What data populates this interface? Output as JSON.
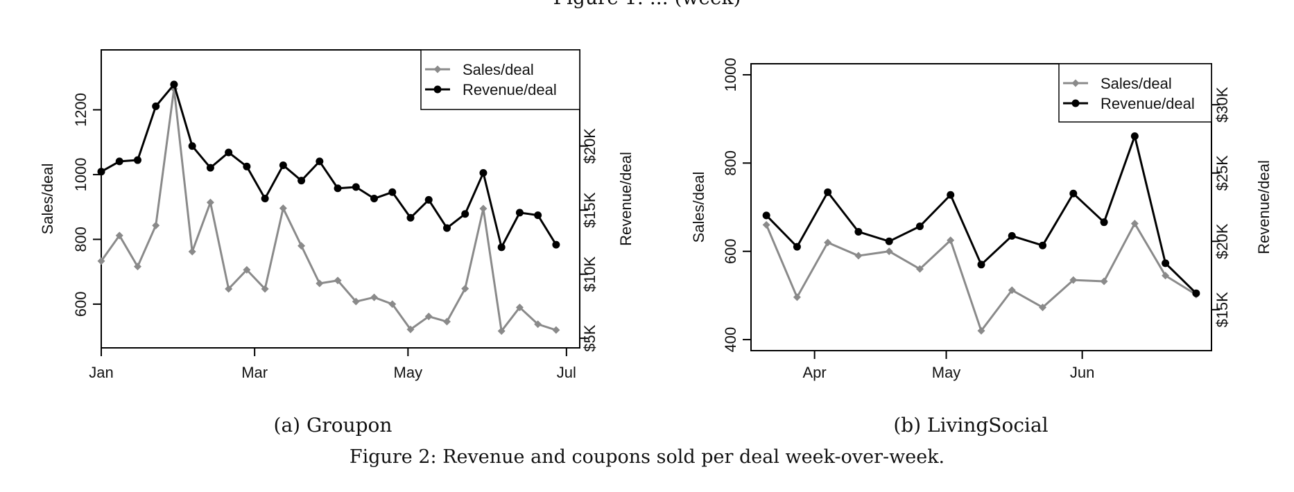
{
  "figure": {
    "top_fragment": "Figure 1: ... (week)",
    "caption_a": "(a) Groupon",
    "caption_b": "(b) LivingSocial",
    "caption": "Figure 2: Revenue and coupons sold per deal week-over-week."
  },
  "colors": {
    "sales": "#8a8a8a",
    "revenue": "#000000",
    "axis": "#000000"
  },
  "chart_data": [
    {
      "type": "line",
      "name": "groupon",
      "title": "",
      "xlabel": "",
      "ylabel": "Sales/deal",
      "y2label": "Revenue/deal",
      "xlim": [
        0,
        26.3
      ],
      "ylim": [
        465,
        1385
      ],
      "y2lim": [
        4250,
        27500
      ],
      "x_ticks": [
        {
          "x": 0,
          "label": "Jan"
        },
        {
          "x": 8.43,
          "label": "Mar"
        },
        {
          "x": 16.86,
          "label": "May"
        },
        {
          "x": 25.57,
          "label": "Jul"
        }
      ],
      "y_ticks": [
        600,
        800,
        1000,
        1200
      ],
      "y2_ticks": [
        {
          "v": 5000,
          "label": "$5K"
        },
        {
          "v": 10000,
          "label": "$10K"
        },
        {
          "v": 15000,
          "label": "$15K"
        },
        {
          "v": 20000,
          "label": "$20K"
        }
      ],
      "legend": {
        "position": "top-right",
        "entries": [
          "Sales/deal",
          "Revenue/deal"
        ]
      },
      "series": [
        {
          "name": "Sales/deal",
          "axis": "left",
          "marker": "diamond",
          "x": [
            0,
            1,
            2,
            3,
            4,
            5,
            6,
            7,
            8,
            9,
            10,
            11,
            12,
            13,
            14,
            15,
            16,
            17,
            18,
            19,
            20,
            21,
            22,
            23,
            24,
            25
          ],
          "values": [
            733,
            812,
            716,
            843,
            1265,
            762,
            914,
            647,
            706,
            647,
            896,
            780,
            664,
            673,
            608,
            621,
            600,
            522,
            562,
            546,
            648,
            895,
            517,
            590,
            538,
            520
          ]
        },
        {
          "name": "Revenue/deal",
          "axis": "right",
          "marker": "circle",
          "x": [
            0,
            1,
            2,
            3,
            4,
            5,
            6,
            7,
            8,
            9,
            10,
            11,
            12,
            13,
            14,
            15,
            16,
            17,
            18,
            19,
            20,
            21,
            22,
            23,
            24,
            25
          ],
          "values": [
            18000,
            18800,
            18900,
            23100,
            24800,
            20000,
            18300,
            19500,
            18400,
            15900,
            18500,
            17300,
            18800,
            16700,
            16800,
            15900,
            16400,
            14400,
            15800,
            13600,
            14700,
            17900,
            12100,
            14800,
            14600,
            12300
          ]
        }
      ]
    },
    {
      "type": "line",
      "name": "livingsocial",
      "title": "",
      "xlabel": "",
      "ylabel": "Sales/deal",
      "y2label": "Revenue/deal",
      "xlim": [
        -0.5,
        14.5
      ],
      "ylim": [
        375,
        1025
      ],
      "y2lim": [
        12000,
        33000
      ],
      "x_ticks": [
        {
          "x": 1.57,
          "label": "Apr"
        },
        {
          "x": 5.86,
          "label": "May"
        },
        {
          "x": 10.29,
          "label": "Jun"
        }
      ],
      "y_ticks": [
        400,
        600,
        800,
        1000
      ],
      "y2_ticks": [
        {
          "v": 15000,
          "label": "$15K"
        },
        {
          "v": 20000,
          "label": "$20K"
        },
        {
          "v": 25000,
          "label": "$25K"
        },
        {
          "v": 30000,
          "label": "$30K"
        }
      ],
      "legend": {
        "position": "top-right",
        "entries": [
          "Sales/deal",
          "Revenue/deal"
        ]
      },
      "series": [
        {
          "name": "Sales/deal",
          "axis": "left",
          "marker": "diamond",
          "x": [
            0,
            1,
            2,
            3,
            4,
            5,
            6,
            7,
            8,
            9,
            10,
            11,
            12,
            13,
            14
          ],
          "values": [
            660,
            496,
            620,
            590,
            600,
            560,
            625,
            420,
            512,
            473,
            535,
            532,
            663,
            545,
            502
          ]
        },
        {
          "name": "Revenue/deal",
          "axis": "right",
          "marker": "circle",
          "x": [
            0,
            1,
            2,
            3,
            4,
            5,
            6,
            7,
            8,
            9,
            10,
            11,
            12,
            13,
            14
          ],
          "values": [
            21900,
            19600,
            23600,
            20700,
            20000,
            21100,
            23400,
            18300,
            20400,
            19700,
            23500,
            21400,
            27700,
            18400,
            16200
          ]
        }
      ]
    }
  ]
}
